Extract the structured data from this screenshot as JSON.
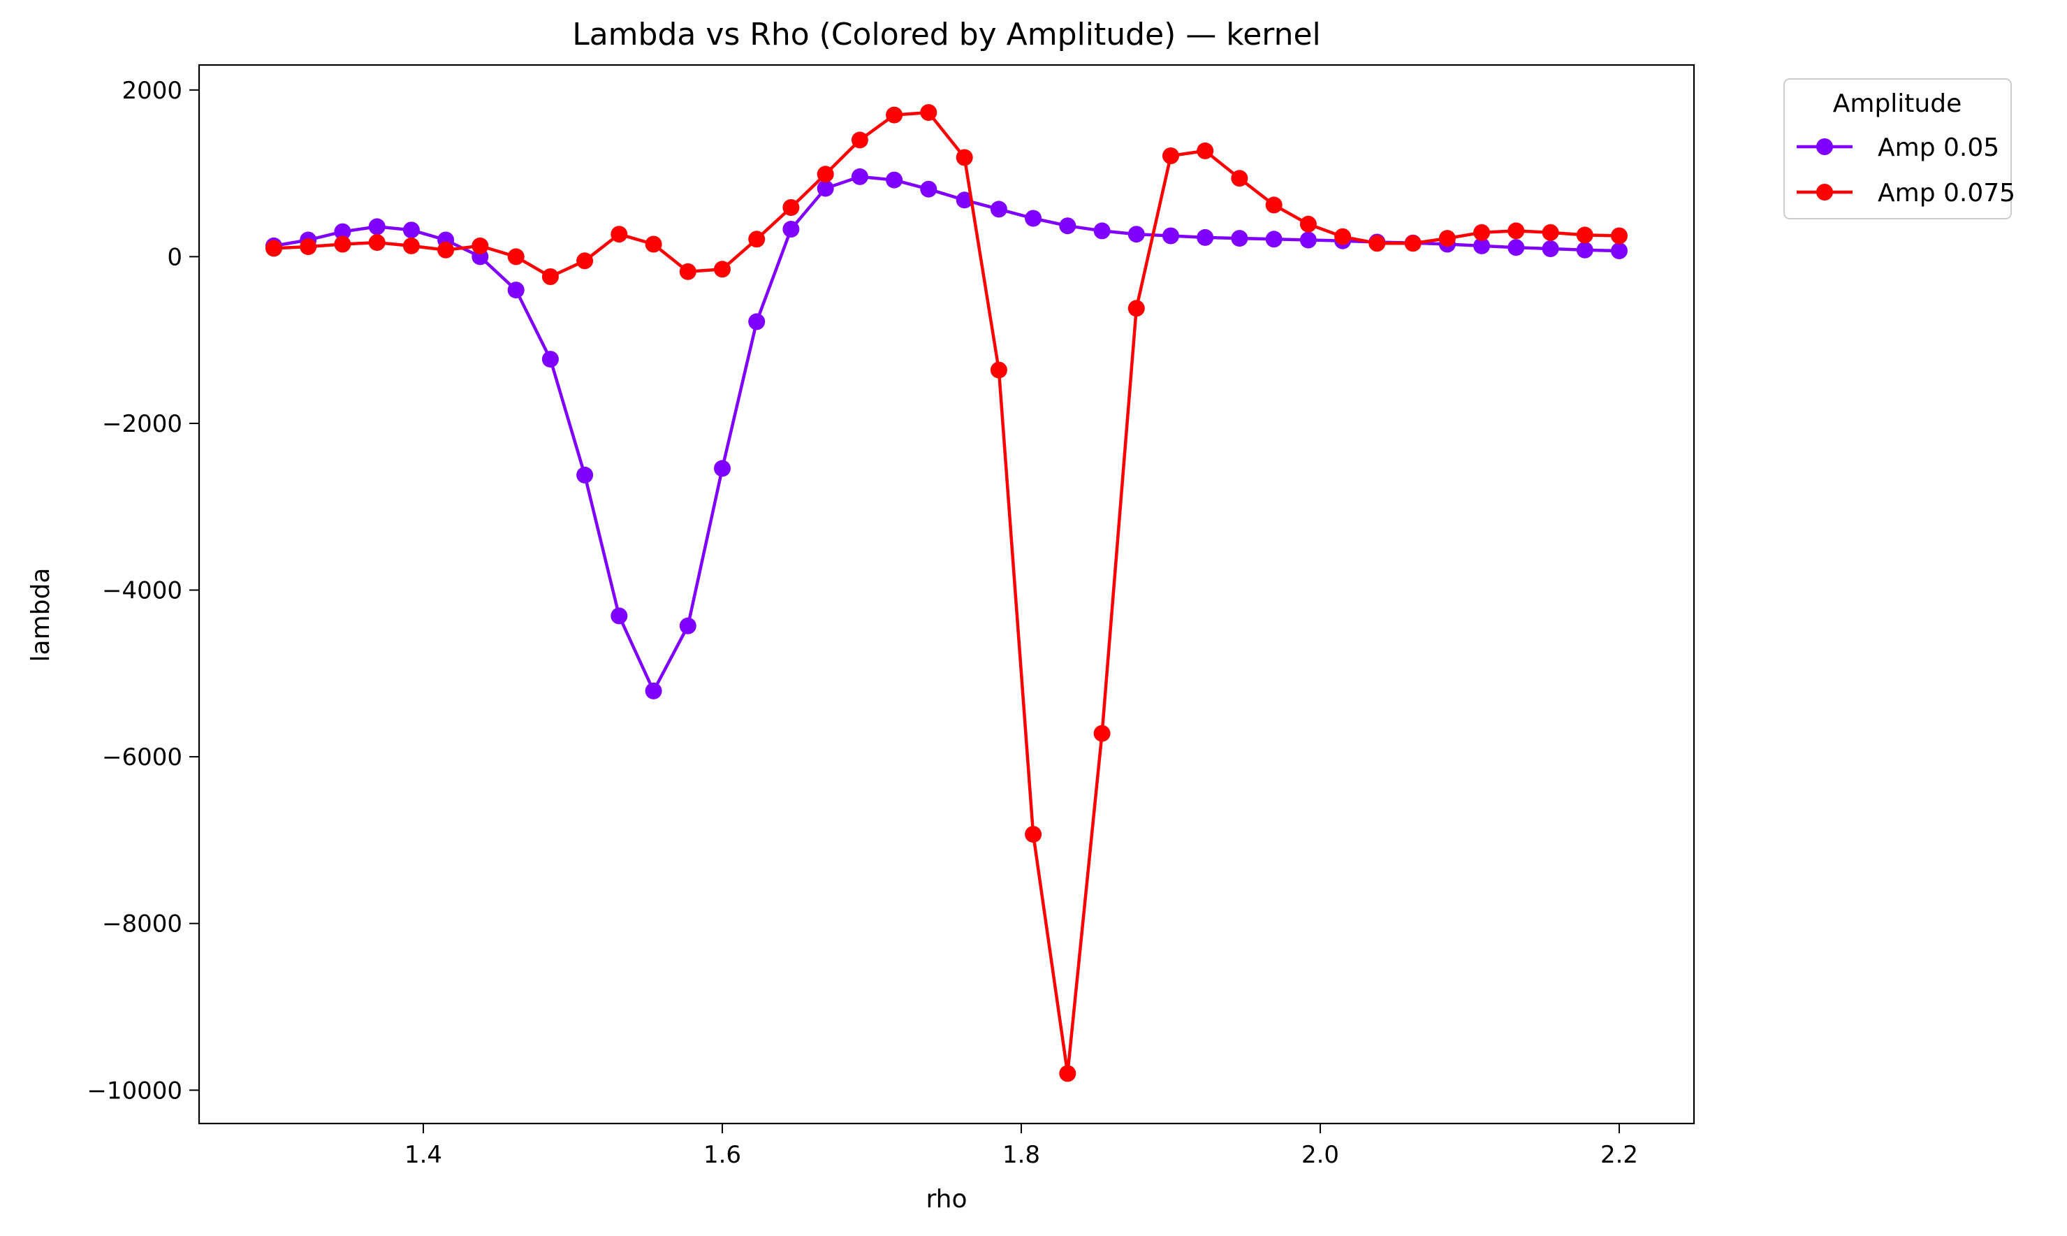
{
  "chart_data": {
    "type": "line",
    "title": "Lambda vs Rho (Colored by Amplitude) — kernel",
    "xlabel": "rho",
    "ylabel": "lambda",
    "xlim": [
      1.25,
      2.25
    ],
    "ylim": [
      -10400,
      2300
    ],
    "xticks": [
      1.4,
      1.6,
      1.8,
      2.0,
      2.2
    ],
    "xtick_labels": [
      "1.4",
      "1.6",
      "1.8",
      "2.0",
      "2.2"
    ],
    "yticks": [
      2000,
      0,
      -2000,
      -4000,
      -6000,
      -8000,
      -10000
    ],
    "ytick_labels": [
      "2000",
      "0",
      "−2000",
      "−4000",
      "−6000",
      "−8000",
      "−10000"
    ],
    "grid": false,
    "legend": {
      "title": "Amplitude",
      "placement": "outside-top-right"
    },
    "x": [
      1.3,
      1.323,
      1.346,
      1.369,
      1.392,
      1.415,
      1.438,
      1.462,
      1.485,
      1.508,
      1.531,
      1.554,
      1.577,
      1.6,
      1.623,
      1.646,
      1.669,
      1.692,
      1.715,
      1.738,
      1.762,
      1.785,
      1.808,
      1.831,
      1.854,
      1.877,
      1.9,
      1.923,
      1.946,
      1.969,
      1.992,
      2.015,
      2.038,
      2.062,
      2.085,
      2.108,
      2.131,
      2.154,
      2.177,
      2.2
    ],
    "series": [
      {
        "name": "Amp 0.05",
        "color": "#8000ff",
        "values": [
          130,
          200,
          300,
          360,
          320,
          200,
          0,
          -400,
          -1230,
          -2620,
          -4310,
          -5210,
          -4430,
          -2540,
          -780,
          330,
          820,
          960,
          920,
          810,
          680,
          570,
          460,
          370,
          310,
          270,
          250,
          230,
          220,
          210,
          200,
          190,
          175,
          165,
          150,
          130,
          110,
          95,
          80,
          70
        ]
      },
      {
        "name": "Amp 0.075",
        "color": "#ff0000",
        "values": [
          100,
          120,
          150,
          170,
          130,
          80,
          130,
          0,
          -240,
          -50,
          270,
          150,
          -180,
          -150,
          210,
          590,
          990,
          1400,
          1700,
          1730,
          1190,
          -1360,
          -6930,
          -9800,
          -5720,
          -620,
          1210,
          1270,
          940,
          620,
          390,
          240,
          160,
          160,
          220,
          290,
          310,
          290,
          260,
          250
        ]
      }
    ]
  }
}
